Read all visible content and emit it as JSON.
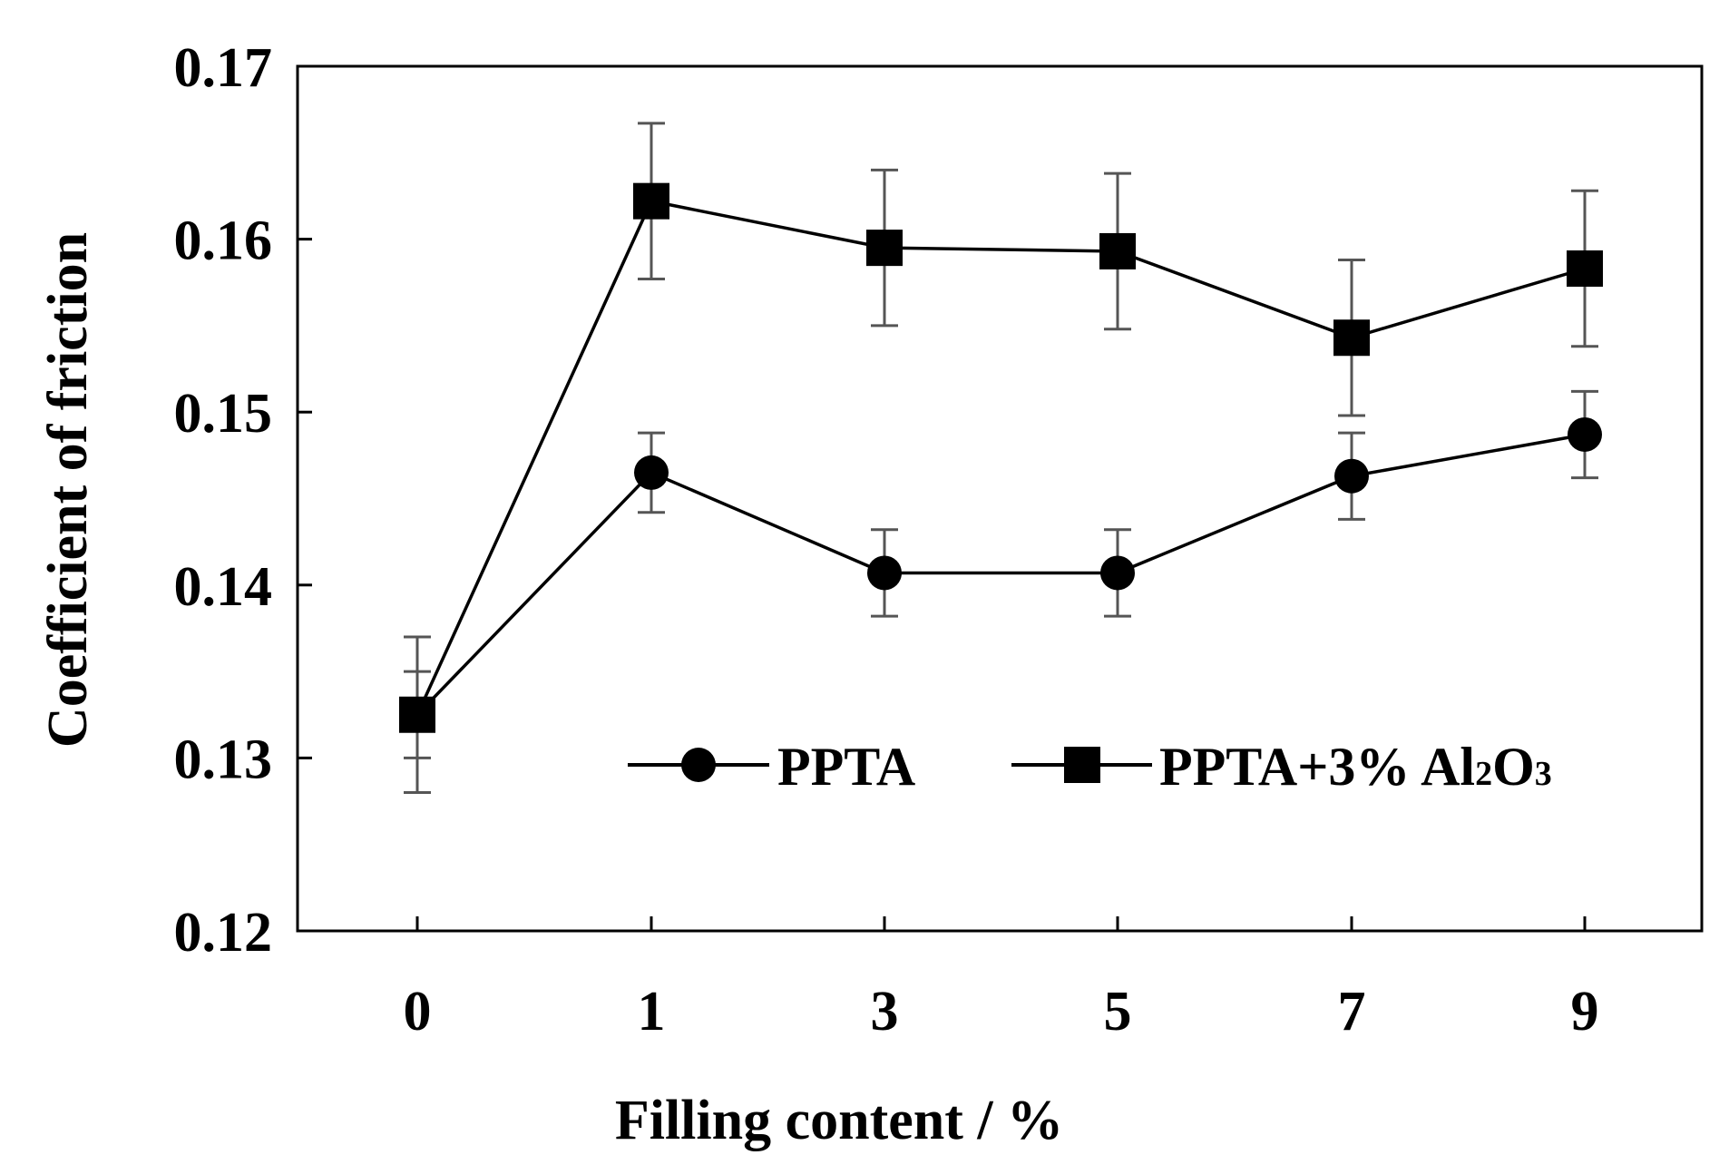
{
  "chart_data": {
    "type": "line",
    "title": "",
    "xlabel": "Filling  content / %",
    "ylabel": "Coefficient  of friction",
    "categories": [
      "0",
      "1",
      "3",
      "5",
      "7",
      "9"
    ],
    "ylim": [
      0.12,
      0.17
    ],
    "yticks": [
      "0.12",
      "0.13",
      "0.14",
      "0.15",
      "0.16",
      "0.17"
    ],
    "grid": false,
    "legend_position": "lower-right inside",
    "series": [
      {
        "name": "PPTA",
        "marker": "circle",
        "values": [
          0.1325,
          0.1465,
          0.1407,
          0.1407,
          0.1463,
          0.1487
        ],
        "error": [
          0.0025,
          0.0023,
          0.0025,
          0.0025,
          0.0025,
          0.0025
        ]
      },
      {
        "name": "PPTA+3% Al2O3",
        "legend_parts": [
          "PPTA+3% Al",
          "2",
          "O",
          "3"
        ],
        "marker": "square",
        "values": [
          0.1325,
          0.1622,
          0.1595,
          0.1593,
          0.1543,
          0.1583
        ],
        "error": [
          0.0045,
          0.0045,
          0.0045,
          0.0045,
          0.0045,
          0.0045
        ]
      }
    ],
    "colors": {
      "line": "#000000",
      "error_bar": "#555555",
      "frame": "#000000"
    }
  }
}
